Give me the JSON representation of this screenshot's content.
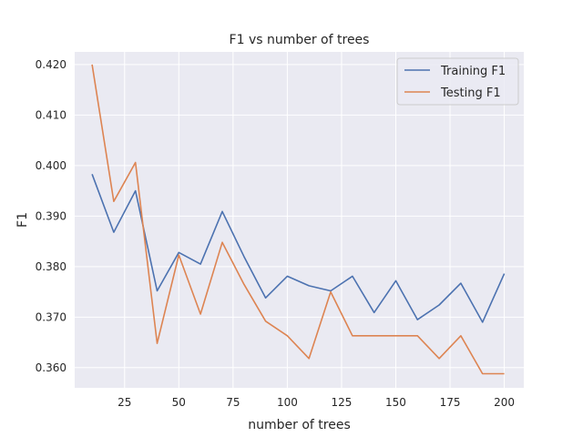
{
  "chart_data": {
    "type": "line",
    "title": "F1 vs number of trees",
    "xlabel": "number of trees",
    "ylabel": "F1",
    "xlim": [
      2,
      209
    ],
    "ylim": [
      0.356,
      0.4225
    ],
    "xticks": [
      25,
      50,
      75,
      100,
      125,
      150,
      175,
      200
    ],
    "xtick_labels": [
      "25",
      "50",
      "75",
      "100",
      "125",
      "150",
      "175",
      "200"
    ],
    "yticks": [
      0.36,
      0.37,
      0.38,
      0.39,
      0.4,
      0.41,
      0.42
    ],
    "ytick_labels": [
      "0.360",
      "0.370",
      "0.380",
      "0.390",
      "0.400",
      "0.410",
      "0.420"
    ],
    "grid": true,
    "legend_position": "top-right",
    "x": [
      10,
      20,
      30,
      40,
      50,
      60,
      70,
      80,
      90,
      100,
      110,
      120,
      130,
      140,
      150,
      160,
      170,
      180,
      190,
      200
    ],
    "series": [
      {
        "name": "Training F1",
        "color": "#4c72b0",
        "values": [
          0.3983,
          0.3868,
          0.395,
          0.3752,
          0.3828,
          0.3805,
          0.3909,
          0.382,
          0.3738,
          0.3781,
          0.3762,
          0.3752,
          0.3781,
          0.3709,
          0.3772,
          0.3695,
          0.3724,
          0.3767,
          0.369,
          0.3786
        ]
      },
      {
        "name": "Testing F1",
        "color": "#dd8452",
        "values": [
          0.42,
          0.3929,
          0.4006,
          0.3648,
          0.3823,
          0.3706,
          0.3848,
          0.3765,
          0.3692,
          0.3663,
          0.3618,
          0.375,
          0.3663,
          0.3663,
          0.3663,
          0.3663,
          0.3618,
          0.3663,
          0.3588,
          0.3588
        ]
      }
    ]
  },
  "style": {
    "plot_background": "#eaeaf2",
    "grid_color": "#ffffff",
    "text_color": "#262626"
  }
}
